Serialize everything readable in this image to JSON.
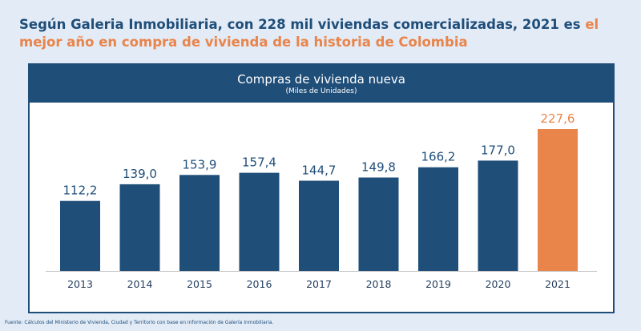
{
  "headline": {
    "main": "Según Galeria Inmobiliaria, con 228 mil viviendas comercializadas, 2021 es ",
    "highlight": "el mejor año en compra de vivienda de la historia de Colombia"
  },
  "source": "Fuente: Cálculos del Ministerio de Vivienda, Ciudad y Territorio con base en información de Galería Inmobiliaria.",
  "colors": {
    "bar": "#1f4e79",
    "highlight": "#e9844a",
    "background": "#e3ebf6"
  },
  "chart_data": {
    "type": "bar",
    "title": "Compras de vivienda nueva",
    "subtitle": "(Miles de Unidades)",
    "categories": [
      "2013",
      "2014",
      "2015",
      "2016",
      "2017",
      "2018",
      "2019",
      "2020",
      "2021"
    ],
    "values": [
      112.2,
      139.0,
      153.9,
      157.4,
      144.7,
      149.8,
      166.2,
      177.0,
      227.6
    ],
    "labels": [
      "112,2",
      "139,0",
      "153,9",
      "157,4",
      "144,7",
      "149,8",
      "166,2",
      "177,0",
      "227,6"
    ],
    "highlight_category": "2021",
    "grid": false,
    "legend": "none"
  }
}
